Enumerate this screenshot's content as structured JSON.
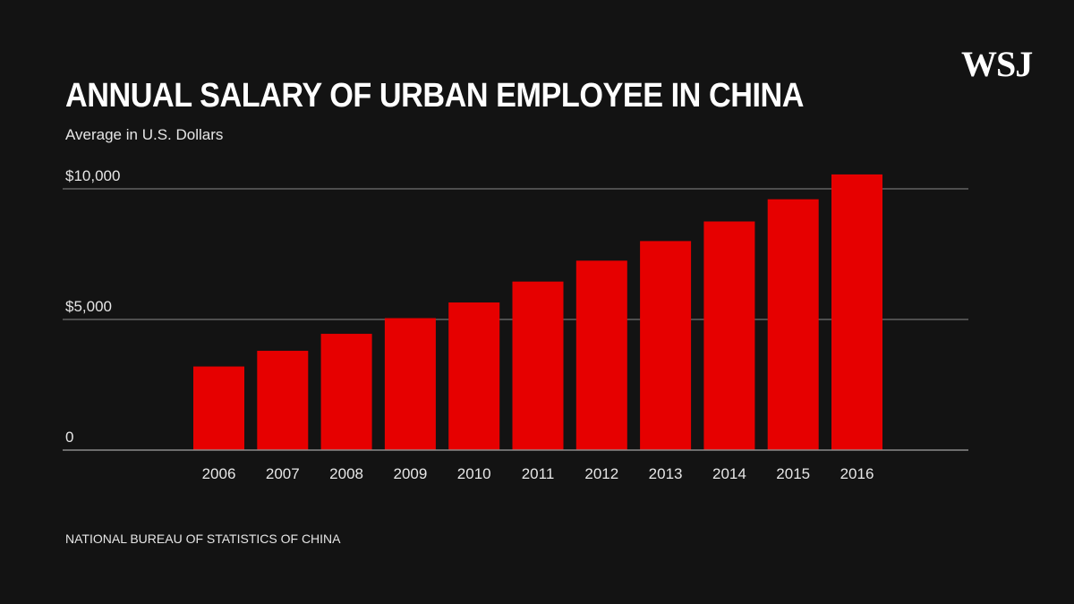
{
  "logo": "WSJ",
  "title": "ANNUAL SALARY OF URBAN EMPLOYEE IN CHINA",
  "subtitle": "Average in U.S. Dollars",
  "source": "NATIONAL BUREAU OF STATISTICS OF CHINA",
  "colors": {
    "background": "#131313",
    "bar": "#e60000",
    "gridline": "#8a8a8a",
    "text": "#ffffff"
  },
  "chart_data": {
    "type": "bar",
    "title": "ANNUAL SALARY OF URBAN EMPLOYEE IN CHINA",
    "subtitle": "Average in U.S. Dollars",
    "xlabel": "",
    "ylabel": "",
    "categories": [
      "2006",
      "2007",
      "2008",
      "2009",
      "2010",
      "2011",
      "2012",
      "2013",
      "2014",
      "2015",
      "2016"
    ],
    "values": [
      3200,
      3800,
      4450,
      5050,
      5650,
      6450,
      7250,
      8000,
      8750,
      9600,
      10550
    ],
    "ylim": [
      0,
      10000
    ],
    "y_ticks": [
      0,
      5000,
      10000
    ],
    "y_tick_labels": [
      "0",
      "$5,000",
      "$10,000"
    ],
    "grid": true,
    "legend": "none"
  }
}
